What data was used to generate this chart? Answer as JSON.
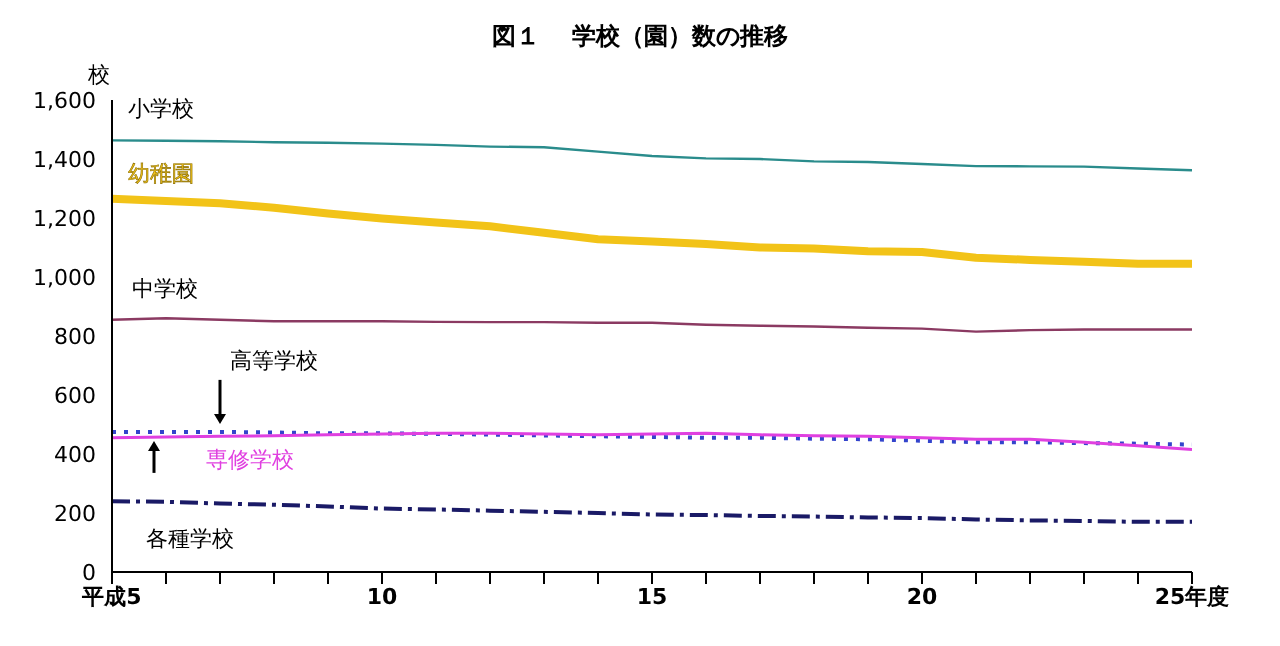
{
  "chart_data": {
    "type": "line",
    "title": "図１　 学校（園）数の推移",
    "ylabel": "校",
    "x": [
      5,
      6,
      7,
      8,
      9,
      10,
      11,
      12,
      13,
      14,
      15,
      16,
      17,
      18,
      19,
      20,
      21,
      22,
      23,
      24,
      25
    ],
    "xlim": [
      5,
      25
    ],
    "xticks": [
      {
        "value": 5,
        "label": "平成5"
      },
      {
        "value": 6,
        "label": null
      },
      {
        "value": 7,
        "label": null
      },
      {
        "value": 8,
        "label": null
      },
      {
        "value": 9,
        "label": null
      },
      10,
      {
        "value": 11,
        "label": null
      },
      {
        "value": 12,
        "label": null
      },
      {
        "value": 13,
        "label": null
      },
      {
        "value": 14,
        "label": null
      },
      15,
      {
        "value": 16,
        "label": null
      },
      {
        "value": 17,
        "label": null
      },
      {
        "value": 18,
        "label": null
      },
      {
        "value": 19,
        "label": null
      },
      20,
      {
        "value": 21,
        "label": null
      },
      {
        "value": 22,
        "label": null
      },
      {
        "value": 23,
        "label": null
      },
      {
        "value": 24,
        "label": null
      },
      {
        "value": 25,
        "label": "25年度"
      }
    ],
    "ylim": [
      0,
      1600
    ],
    "yticks": [
      0,
      200,
      400,
      600,
      800,
      {
        "value": 1000,
        "label": "1,000"
      },
      {
        "value": 1200,
        "label": "1,200"
      },
      {
        "value": 1400,
        "label": "1,400"
      },
      {
        "value": 1600,
        "label": "1,600"
      }
    ],
    "grid": false,
    "legend": false,
    "marker": "none",
    "series": [
      {
        "name": "小学校",
        "color": "#2a8c8c",
        "line_style": "solid",
        "values": [
          1463,
          1462,
          1460,
          1457,
          1455,
          1452,
          1448,
          1442,
          1440,
          1425,
          1410,
          1402,
          1400,
          1392,
          1390,
          1383,
          1376,
          1375,
          1374,
          1368,
          1362
        ]
      },
      {
        "name": "幼稚園",
        "color": "#f2c318",
        "line_style": "solid",
        "values": [
          1265,
          1258,
          1250,
          1235,
          1215,
          1198,
          1185,
          1172,
          1150,
          1128,
          1120,
          1112,
          1100,
          1097,
          1087,
          1085,
          1065,
          1058,
          1052,
          1045,
          1045
        ]
      },
      {
        "name": "中学校",
        "color": "#8b3a62",
        "line_style": "solid",
        "values": [
          855,
          860,
          855,
          850,
          850,
          850,
          848,
          847,
          847,
          845,
          845,
          838,
          835,
          832,
          828,
          825,
          815,
          820,
          822,
          822,
          822
        ]
      },
      {
        "name": "高等学校",
        "color": "#3344cc",
        "line_style": "dotted",
        "values": [
          475,
          475,
          475,
          473,
          470,
          470,
          468,
          466,
          463,
          460,
          458,
          455,
          455,
          452,
          450,
          445,
          440,
          440,
          437,
          435,
          432
        ]
      },
      {
        "name": "専修学校",
        "color": "#e040e0",
        "line_style": "solid",
        "values": [
          455,
          458,
          460,
          462,
          465,
          468,
          470,
          470,
          468,
          465,
          468,
          470,
          465,
          462,
          460,
          455,
          450,
          450,
          440,
          428,
          415
        ]
      },
      {
        "name": "各種学校",
        "color": "#1a1a66",
        "line_style": "dashed",
        "values": [
          240,
          238,
          232,
          228,
          222,
          215,
          212,
          208,
          204,
          200,
          195,
          193,
          190,
          188,
          185,
          183,
          178,
          175,
          173,
          170,
          170
        ]
      }
    ]
  }
}
